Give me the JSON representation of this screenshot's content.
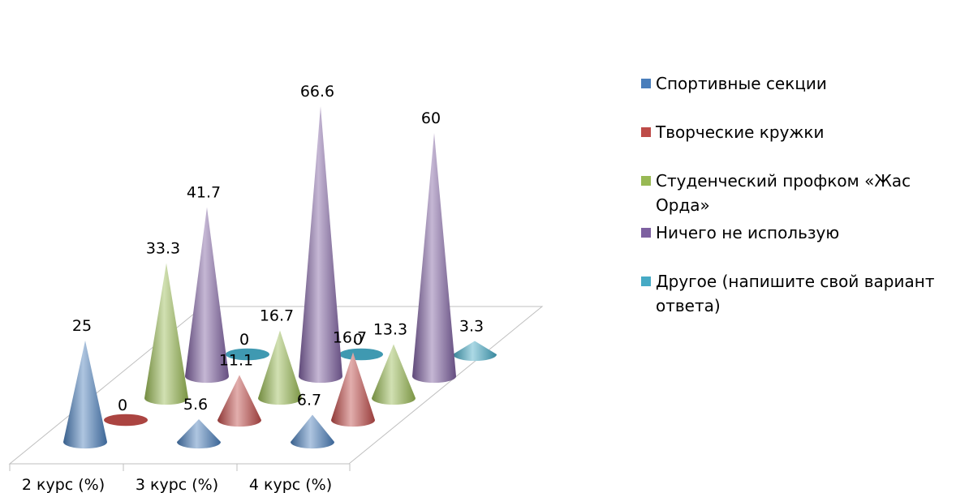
{
  "chart_data": {
    "type": "3d-cone-column",
    "categories": [
      "2 курс (%)",
      "3 курс (%)",
      "4 курс (%)"
    ],
    "series": [
      {
        "name": "Спортивные секции",
        "color": "#4a7ebb",
        "values": [
          25,
          5.6,
          6.7
        ]
      },
      {
        "name": "Творческие кружки",
        "color": "#be4b48",
        "values": [
          0,
          11.1,
          16.7
        ]
      },
      {
        "name": "Студенческий профком «Жас Орда»",
        "color": "#98b954",
        "values": [
          33.3,
          16.7,
          13.3
        ]
      },
      {
        "name": "Ничего не использую",
        "color": "#7d60a0",
        "values": [
          41.7,
          66.6,
          60
        ]
      },
      {
        "name": "Другое (напишите свой вариант ответа)",
        "color": "#46aac5",
        "values": [
          0,
          0,
          3.3
        ]
      }
    ],
    "data_labels": [
      [
        "25",
        "5.6",
        "6.7"
      ],
      [
        "0",
        "11.1",
        "16.7"
      ],
      [
        "33.3",
        "16.7",
        "13.3"
      ],
      [
        "41.7",
        "66.6",
        "60"
      ],
      [
        "0",
        "0",
        "3.3"
      ]
    ],
    "legend_position": "right",
    "grid": false
  }
}
